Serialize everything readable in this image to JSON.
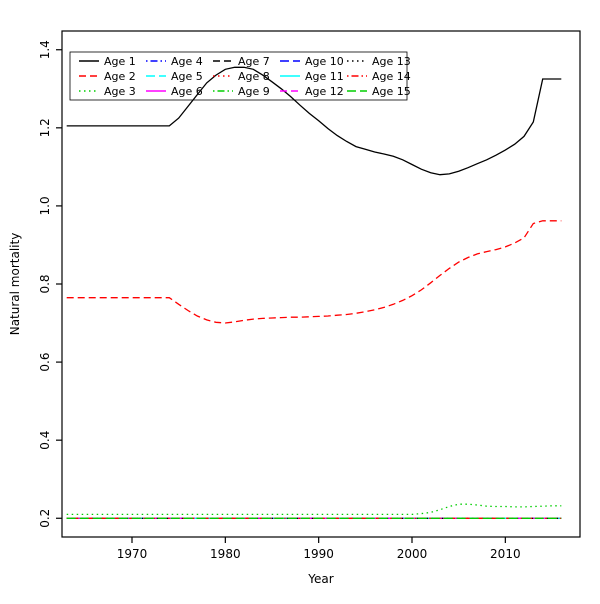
{
  "figure": {
    "background": "#ffffff"
  },
  "chart_data": {
    "type": "line",
    "title": "",
    "xlabel": "Year",
    "ylabel": "Natural mortality",
    "xlim": [
      1962.5,
      2018.0
    ],
    "ylim": [
      0.152,
      1.448
    ],
    "xticks": [
      1970,
      1980,
      1990,
      2000,
      2010
    ],
    "yticks": [
      0.2,
      0.4,
      0.6,
      0.8,
      1.0,
      1.2,
      1.4
    ],
    "x_start": 1963,
    "x_end": 2016,
    "grid": false,
    "legend_position": "top-left",
    "legend_ncol": 5,
    "legend_nrow": 3,
    "colors": {
      "black": "#000000",
      "red": "#ff0000",
      "green": "#00cd00",
      "blue": "#0000ff",
      "cyan": "#00ffff",
      "magenta": "#ff00ff"
    },
    "series": [
      {
        "name": "Age 1",
        "color": "#000000",
        "linetype": "solid",
        "values": [
          1.205,
          1.205,
          1.205,
          1.205,
          1.205,
          1.205,
          1.205,
          1.205,
          1.205,
          1.205,
          1.205,
          1.205,
          1.225,
          1.255,
          1.285,
          1.315,
          1.335,
          1.35,
          1.355,
          1.355,
          1.35,
          1.335,
          1.318,
          1.3,
          1.28,
          1.258,
          1.237,
          1.218,
          1.198,
          1.18,
          1.165,
          1.152,
          1.145,
          1.138,
          1.133,
          1.127,
          1.118,
          1.106,
          1.094,
          1.085,
          1.08,
          1.082,
          1.089,
          1.098,
          1.108,
          1.118,
          1.13,
          1.143,
          1.158,
          1.178,
          1.215,
          1.325,
          1.325,
          1.325
        ]
      },
      {
        "name": "Age 2",
        "color": "#ff0000",
        "linetype": "dashed",
        "values": [
          0.765,
          0.765,
          0.765,
          0.765,
          0.765,
          0.765,
          0.765,
          0.765,
          0.765,
          0.765,
          0.765,
          0.765,
          0.748,
          0.732,
          0.718,
          0.708,
          0.702,
          0.7,
          0.703,
          0.707,
          0.71,
          0.712,
          0.713,
          0.714,
          0.715,
          0.715,
          0.716,
          0.717,
          0.718,
          0.72,
          0.722,
          0.725,
          0.729,
          0.734,
          0.74,
          0.748,
          0.758,
          0.77,
          0.785,
          0.803,
          0.822,
          0.84,
          0.856,
          0.868,
          0.877,
          0.883,
          0.888,
          0.895,
          0.905,
          0.918,
          0.955,
          0.962,
          0.962,
          0.962
        ]
      },
      {
        "name": "Age 3",
        "color": "#00cd00",
        "linetype": "dotted",
        "values": [
          0.21,
          0.21,
          0.21,
          0.21,
          0.21,
          0.21,
          0.21,
          0.21,
          0.21,
          0.21,
          0.21,
          0.21,
          0.21,
          0.21,
          0.21,
          0.21,
          0.21,
          0.21,
          0.21,
          0.21,
          0.21,
          0.21,
          0.21,
          0.21,
          0.21,
          0.21,
          0.21,
          0.21,
          0.21,
          0.21,
          0.21,
          0.21,
          0.21,
          0.21,
          0.21,
          0.21,
          0.21,
          0.21,
          0.212,
          0.215,
          0.222,
          0.23,
          0.236,
          0.236,
          0.234,
          0.231,
          0.23,
          0.23,
          0.229,
          0.229,
          0.23,
          0.231,
          0.232,
          0.232
        ]
      },
      {
        "name": "Age 4",
        "color": "#0000ff",
        "linetype": "dotdash",
        "constant": 0.2
      },
      {
        "name": "Age 5",
        "color": "#00ffff",
        "linetype": "longdash",
        "constant": 0.2
      },
      {
        "name": "Age 6",
        "color": "#ff00ff",
        "linetype": "solid",
        "constant": 0.2
      },
      {
        "name": "Age 7",
        "color": "#000000",
        "linetype": "dashed",
        "constant": 0.2
      },
      {
        "name": "Age 8",
        "color": "#ff0000",
        "linetype": "dotted",
        "constant": 0.2
      },
      {
        "name": "Age 9",
        "color": "#00cd00",
        "linetype": "dotdash",
        "constant": 0.2
      },
      {
        "name": "Age 10",
        "color": "#0000ff",
        "linetype": "longdash",
        "constant": 0.2
      },
      {
        "name": "Age 11",
        "color": "#00ffff",
        "linetype": "solid",
        "constant": 0.2
      },
      {
        "name": "Age 12",
        "color": "#ff00ff",
        "linetype": "dashed",
        "constant": 0.2
      },
      {
        "name": "Age 13",
        "color": "#000000",
        "linetype": "dotted",
        "constant": 0.2
      },
      {
        "name": "Age 14",
        "color": "#ff0000",
        "linetype": "dotdash",
        "constant": 0.2
      },
      {
        "name": "Age 15",
        "color": "#00cd00",
        "linetype": "longdash",
        "constant": 0.2
      }
    ]
  }
}
